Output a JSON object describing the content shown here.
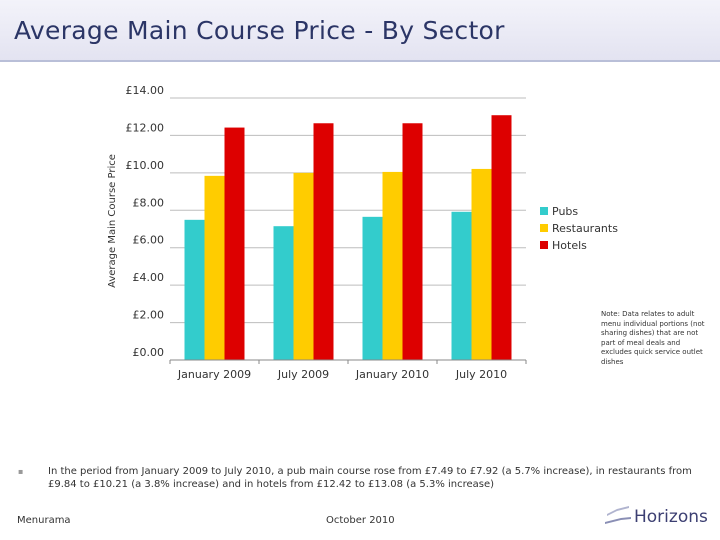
{
  "slide": {
    "title": "Average Main Course Price - By Sector",
    "note": "Note: Data relates to adult menu individual portions (not sharing dishes) that are not part of meal deals and excludes quick service outlet dishes",
    "summary": "In the period from January 2009 to July 2010, a pub main course rose from £7.49 to £7.92 (a 5.7% increase), in restaurants from £9.84 to £10.21 (a 3.8% increase) and in hotels from £12.42 to £13.08 (a 5.3% increase)",
    "footer_left": "Menurama",
    "footer_center": "October 2010",
    "logo_text": "Horizons",
    "logo_color": "#3c3f72"
  },
  "chart_data": {
    "type": "bar",
    "ylabel": "Average Main Course Price",
    "ylim": [
      0,
      14
    ],
    "yticks": [
      0,
      2,
      4,
      6,
      8,
      10,
      12,
      14
    ],
    "ytick_labels": [
      "£0.00",
      "£2.00",
      "£4.00",
      "£6.00",
      "£8.00",
      "£10.00",
      "£12.00",
      "£14.00"
    ],
    "grid": true,
    "legend": "right",
    "categories": [
      "January 2009",
      "July 2009",
      "January 2010",
      "July 2010"
    ],
    "series": [
      {
        "name": "Pubs",
        "color": "#33cccc",
        "values": [
          7.49,
          7.15,
          7.65,
          7.92
        ]
      },
      {
        "name": "Restaurants",
        "color": "#ffcc00",
        "values": [
          9.84,
          10.0,
          10.05,
          10.21
        ]
      },
      {
        "name": "Hotels",
        "color": "#dd0000",
        "values": [
          12.42,
          12.65,
          12.65,
          13.08
        ]
      }
    ]
  }
}
